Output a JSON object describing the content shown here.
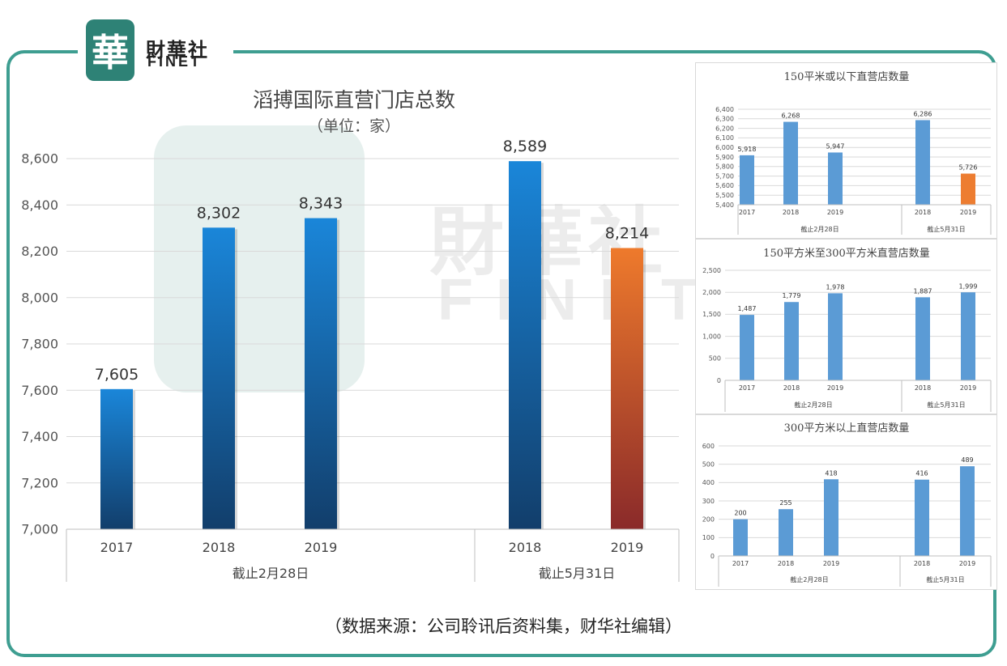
{
  "logo": {
    "seal_char": "華",
    "name_cn": "財華社",
    "name_en": "FINET"
  },
  "watermark": {
    "text_cn": "財華社",
    "text_en": "FINET"
  },
  "colors": {
    "frame": "#3e9e91",
    "blue_top": "#1a86d9",
    "blue_bottom": "#123e6b",
    "orange_top": "#ee7a2c",
    "orange_bottom": "#8a2a2a",
    "small_blue": "#5b9bd5",
    "small_orange": "#ed7d31",
    "grid": "#d9d9d9"
  },
  "chart_data": [
    {
      "type": "bar",
      "title": "滔搏国际直营门店总数",
      "subtitle": "（单位：家）",
      "groups": [
        {
          "label": "截止2月28日",
          "categories": [
            "2017",
            "2018",
            "2019"
          ],
          "values": [
            7605,
            8302,
            8343
          ],
          "value_labels": [
            "7,605",
            "8,302",
            "8,343"
          ]
        },
        {
          "label": "截止5月31日",
          "categories": [
            "2018",
            "2019"
          ],
          "values": [
            8589,
            8214
          ],
          "value_labels": [
            "8,589",
            "8,214"
          ]
        }
      ],
      "highlight": {
        "group": 1,
        "index": 1,
        "color": "orange"
      },
      "ylim": [
        7000,
        8600
      ],
      "yticks": [
        "7,000",
        "7,200",
        "7,400",
        "7,600",
        "7,800",
        "8,000",
        "8,200",
        "8,400",
        "8,600"
      ],
      "grid": true
    },
    {
      "type": "bar",
      "title": "150平米或以下直营店数量",
      "groups": [
        {
          "label": "截止2月28日",
          "categories": [
            "2017",
            "2018",
            "2019"
          ],
          "values": [
            5918,
            6268,
            5947
          ],
          "value_labels": [
            "5,918",
            "6,268",
            "5,947"
          ]
        },
        {
          "label": "截止5月31日",
          "categories": [
            "2018",
            "2019"
          ],
          "values": [
            6286,
            5726
          ],
          "value_labels": [
            "6,286",
            "5,726"
          ]
        }
      ],
      "highlight": {
        "group": 1,
        "index": 1,
        "color": "orange"
      },
      "ylim": [
        5400,
        6400
      ],
      "yticks": [
        "5,400",
        "5,500",
        "5,600",
        "5,700",
        "5,800",
        "5,900",
        "6,000",
        "6,100",
        "6,200",
        "6,300",
        "6,400"
      ],
      "grid": true
    },
    {
      "type": "bar",
      "title": "150平方米至300平方米直营店数量",
      "groups": [
        {
          "label": "截止2月28日",
          "categories": [
            "2017",
            "2018",
            "2019"
          ],
          "values": [
            1487,
            1779,
            1978
          ],
          "value_labels": [
            "1,487",
            "1,779",
            "1,978"
          ]
        },
        {
          "label": "截止5月31日",
          "categories": [
            "2018",
            "2019"
          ],
          "values": [
            1887,
            1999
          ],
          "value_labels": [
            "1,887",
            "1,999"
          ]
        }
      ],
      "ylim": [
        0,
        2500
      ],
      "yticks": [
        "0",
        "500",
        "1,000",
        "1,500",
        "2,000",
        "2,500"
      ],
      "grid": true
    },
    {
      "type": "bar",
      "title": "300平方米以上直营店数量",
      "groups": [
        {
          "label": "截止2月28日",
          "categories": [
            "2017",
            "2018",
            "2019"
          ],
          "values": [
            200,
            255,
            418
          ],
          "value_labels": [
            "200",
            "255",
            "418"
          ]
        },
        {
          "label": "截止5月31日",
          "categories": [
            "2018",
            "2019"
          ],
          "values": [
            416,
            489
          ],
          "value_labels": [
            "416",
            "489"
          ]
        }
      ],
      "ylim": [
        0,
        600
      ],
      "yticks": [
        "0",
        "100",
        "200",
        "300",
        "400",
        "500",
        "600"
      ],
      "grid": true
    }
  ],
  "footnote": "（数据来源：公司聆讯后资料集，财华社编辑）"
}
